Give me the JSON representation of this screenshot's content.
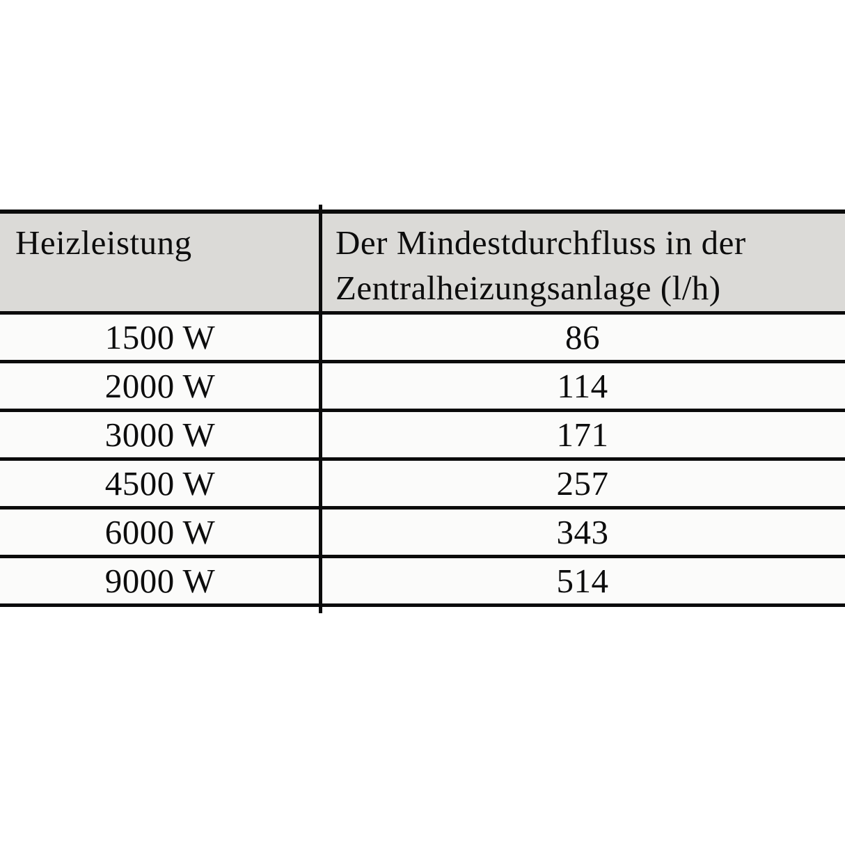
{
  "table": {
    "columns": [
      {
        "label": "Heizleistung"
      },
      {
        "label": "Der Mindestdurchfluss in der Zentralheizungsanlage (l/h)"
      }
    ],
    "rows": [
      {
        "power": "1500 W",
        "flow": "86"
      },
      {
        "power": "2000 W",
        "flow": "114"
      },
      {
        "power": "3000 W",
        "flow": "171"
      },
      {
        "power": "4500 W",
        "flow": "257"
      },
      {
        "power": "6000 W",
        "flow": "343"
      },
      {
        "power": "9000 W",
        "flow": "514"
      }
    ],
    "colors": {
      "header_bg": "#dbdad7",
      "body_bg": "#fbfbfa",
      "border": "#0b0b0b",
      "page_bg": "#ffffff"
    }
  },
  "chart_data": {
    "type": "table",
    "title": "",
    "columns": [
      "Heizleistung",
      "Der Mindestdurchfluss in der Zentralheizungsanlage (l/h)"
    ],
    "categories": [
      "1500 W",
      "2000 W",
      "3000 W",
      "4500 W",
      "6000 W",
      "9000 W"
    ],
    "values": [
      86,
      114,
      171,
      257,
      343,
      514
    ]
  }
}
